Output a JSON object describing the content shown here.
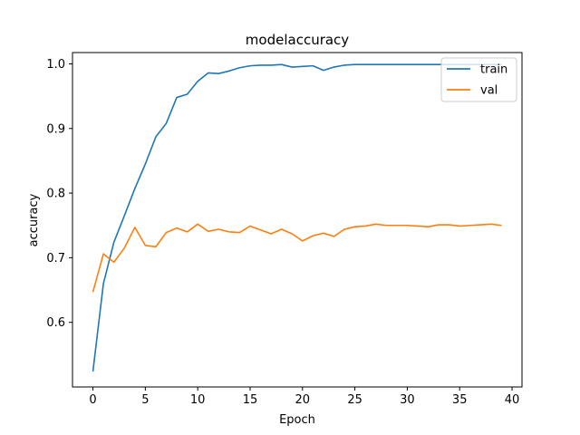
{
  "chart_data": {
    "type": "line",
    "title": "modelaccuracy",
    "xlabel": "Epoch",
    "ylabel": "accuracy",
    "xlim": [
      -1.95,
      40.95
    ],
    "ylim": [
      0.5,
      1.0175
    ],
    "xticks": [
      0,
      5,
      10,
      15,
      20,
      25,
      30,
      35,
      40
    ],
    "yticks": [
      0.6,
      0.7,
      0.8,
      0.9,
      1.0
    ],
    "ytick_labels": [
      "0.6",
      "0.7",
      "0.8",
      "0.9",
      "1.0"
    ],
    "grid": false,
    "legend_position": "top-right",
    "x": [
      0,
      1,
      2,
      3,
      4,
      5,
      6,
      7,
      8,
      9,
      10,
      11,
      12,
      13,
      14,
      15,
      16,
      17,
      18,
      19,
      20,
      21,
      22,
      23,
      24,
      25,
      26,
      27,
      28,
      29,
      30,
      31,
      32,
      33,
      34,
      35,
      36,
      37,
      38,
      39
    ],
    "series": [
      {
        "name": "train",
        "color": "#1f77b4",
        "values": [
          0.524,
          0.66,
          0.724,
          0.765,
          0.807,
          0.845,
          0.887,
          0.908,
          0.948,
          0.953,
          0.973,
          0.986,
          0.985,
          0.989,
          0.994,
          0.997,
          0.998,
          0.998,
          0.999,
          0.995,
          0.996,
          0.997,
          0.99,
          0.995,
          0.998,
          0.999,
          0.999,
          0.999,
          0.999,
          0.999,
          0.999,
          0.999,
          0.999,
          0.999,
          0.999,
          0.999,
          0.999,
          0.999,
          0.999,
          0.999
        ]
      },
      {
        "name": "val",
        "color": "#ff7f0e",
        "values": [
          0.647,
          0.706,
          0.693,
          0.715,
          0.747,
          0.719,
          0.717,
          0.739,
          0.746,
          0.74,
          0.752,
          0.741,
          0.744,
          0.74,
          0.739,
          0.749,
          0.743,
          0.737,
          0.744,
          0.737,
          0.726,
          0.734,
          0.738,
          0.733,
          0.744,
          0.748,
          0.749,
          0.752,
          0.75,
          0.75,
          0.75,
          0.749,
          0.748,
          0.751,
          0.751,
          0.749,
          0.75,
          0.751,
          0.752,
          0.75
        ]
      }
    ]
  }
}
